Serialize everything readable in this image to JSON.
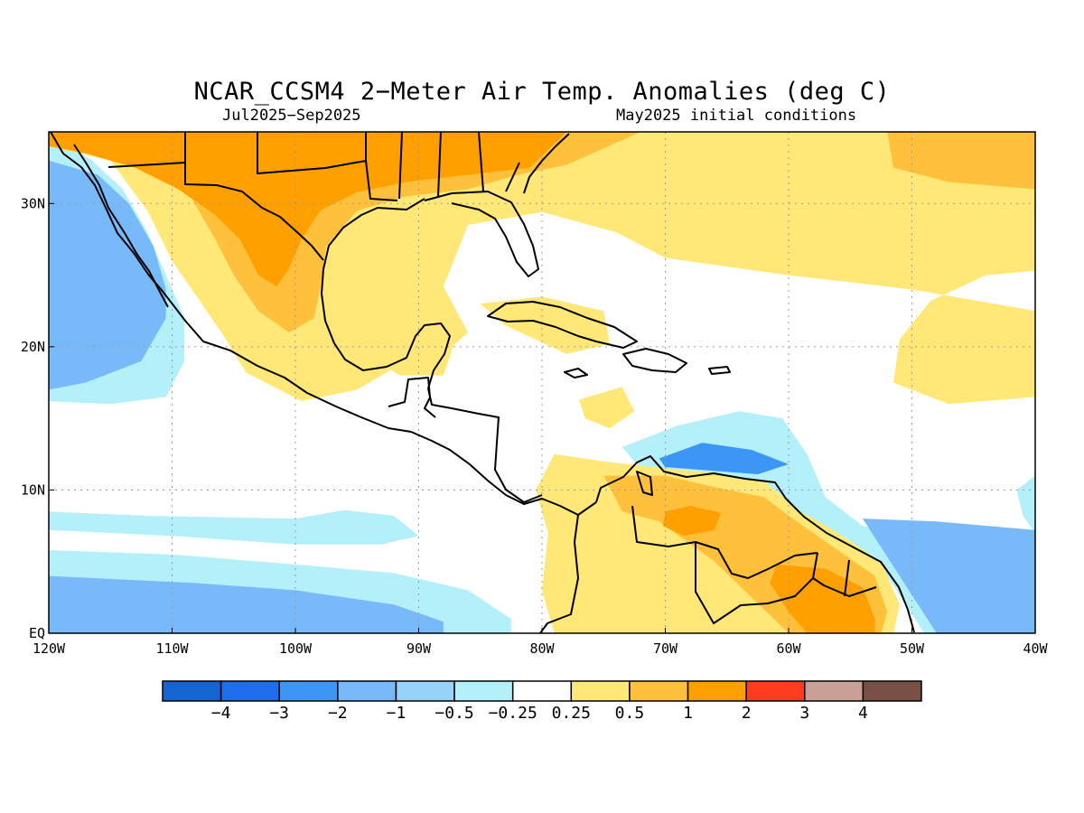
{
  "header": {
    "title": "NCAR_CCSM4 2−Meter Air Temp. Anomalies (deg C)",
    "period": "Jul2025−Sep2025",
    "init": "May2025 initial conditions"
  },
  "map_extent": {
    "lon_min": -120,
    "lon_max": -40,
    "lat_min": 0,
    "lat_max": 35
  },
  "axes": {
    "x_ticks": [
      {
        "lon": -120,
        "label": "120W"
      },
      {
        "lon": -110,
        "label": "110W"
      },
      {
        "lon": -100,
        "label": "100W"
      },
      {
        "lon": -90,
        "label": "90W"
      },
      {
        "lon": -80,
        "label": "80W"
      },
      {
        "lon": -70,
        "label": "70W"
      },
      {
        "lon": -60,
        "label": "60W"
      },
      {
        "lon": -50,
        "label": "50W"
      },
      {
        "lon": -40,
        "label": "40W"
      }
    ],
    "y_ticks": [
      {
        "lat": 0,
        "label": "EQ"
      },
      {
        "lat": 10,
        "label": "10N"
      },
      {
        "lat": 20,
        "label": "20N"
      },
      {
        "lat": 30,
        "label": "30N"
      }
    ]
  },
  "colorbar": {
    "colors": [
      "#1464d2",
      "#1e6eeb",
      "#3c96f5",
      "#78b9fa",
      "#96d2fa",
      "#b4f0fa",
      "#ffffff",
      "#ffe878",
      "#ffc03c",
      "#ffa000",
      "#ff3c1e",
      "#c8a096",
      "#785046"
    ],
    "labels": [
      "−4",
      "−3",
      "−2",
      "−1",
      "−0.5",
      "−0.25",
      "0.25",
      "0.5",
      "1",
      "2",
      "3",
      "4"
    ]
  },
  "regions": [
    {
      "level": 4,
      "name": "cold-neg1",
      "color": "#78b9fa",
      "points": [
        [
          -120,
          33
        ],
        [
          -116,
          32
        ],
        [
          -113.5,
          30
        ],
        [
          -111.5,
          27
        ],
        [
          -110.5,
          24
        ],
        [
          -110.5,
          22
        ],
        [
          -112.5,
          19
        ],
        [
          -117,
          17.5
        ],
        [
          -120,
          17
        ]
      ]
    },
    {
      "level": 4,
      "name": "cold-neg1-equatorial",
      "color": "#78b9fa",
      "points": [
        [
          -120,
          4
        ],
        [
          -108,
          3.5
        ],
        [
          -100,
          3
        ],
        [
          -92,
          2
        ],
        [
          -88,
          0.8
        ],
        [
          -88,
          0
        ],
        [
          -120,
          0
        ]
      ]
    },
    {
      "level": 5,
      "name": "cold-neg05-pacific",
      "color": "#b4f0fa",
      "points": [
        [
          -120,
          35
        ],
        [
          -116.5,
          33
        ],
        [
          -114,
          31
        ],
        [
          -112,
          28
        ],
        [
          -110.5,
          25
        ],
        [
          -109,
          22
        ],
        [
          -109,
          19
        ],
        [
          -110.5,
          16.5
        ],
        [
          -115,
          16
        ],
        [
          -120,
          16.2
        ]
      ]
    },
    {
      "level": 5,
      "name": "cold-neg05-band",
      "color": "#b4f0fa",
      "points": [
        [
          -120,
          8.5
        ],
        [
          -112,
          8.2
        ],
        [
          -100,
          8
        ],
        [
          -96,
          8.6
        ],
        [
          -92,
          8.2
        ],
        [
          -90,
          6.8
        ],
        [
          -93,
          6.2
        ],
        [
          -100,
          6.2
        ],
        [
          -110,
          6.8
        ],
        [
          -120,
          7.2
        ]
      ]
    },
    {
      "level": 5,
      "name": "cold-neg05-south",
      "color": "#b4f0fa",
      "points": [
        [
          -120,
          5.8
        ],
        [
          -110,
          5.5
        ],
        [
          -100,
          4.8
        ],
        [
          -92,
          4.2
        ],
        [
          -86,
          3
        ],
        [
          -82.5,
          1
        ],
        [
          -82.5,
          0
        ],
        [
          -120,
          0
        ]
      ]
    },
    {
      "level": 5,
      "name": "cold-neg05-caribbean",
      "color": "#b4f0fa",
      "points": [
        [
          -73.5,
          13
        ],
        [
          -69,
          14.5
        ],
        [
          -64,
          15.5
        ],
        [
          -60.5,
          15
        ],
        [
          -58.5,
          12.5
        ],
        [
          -57,
          9.5
        ],
        [
          -54,
          7.5
        ],
        [
          -48,
          6.5
        ],
        [
          -40,
          5.5
        ],
        [
          -40,
          0
        ],
        [
          -49,
          0
        ],
        [
          -52,
          4
        ],
        [
          -56,
          6.8
        ],
        [
          -60,
          8.8
        ],
        [
          -63,
          10.6
        ],
        [
          -67,
          11.2
        ],
        [
          -72,
          11.5
        ]
      ]
    },
    {
      "level": 5,
      "name": "cold-neg05-east",
      "color": "#b4f0fa",
      "points": [
        [
          -40,
          11
        ],
        [
          -41.5,
          10
        ],
        [
          -41,
          8.2
        ],
        [
          -40,
          7
        ]
      ]
    },
    {
      "level": 4,
      "name": "cold-neg1-east",
      "color": "#78b9fa",
      "points": [
        [
          -54,
          8
        ],
        [
          -48,
          7.8
        ],
        [
          -40,
          7.2
        ],
        [
          -40,
          0
        ],
        [
          -48,
          0
        ]
      ]
    },
    {
      "level": 3,
      "name": "cold-neg2-caribbean",
      "color": "#3c96f5",
      "points": [
        [
          -70.5,
          12.2
        ],
        [
          -67,
          13.3
        ],
        [
          -63,
          12.8
        ],
        [
          -60,
          11.8
        ],
        [
          -62.5,
          11.1
        ],
        [
          -67,
          11.4
        ],
        [
          -70,
          11.6
        ]
      ]
    },
    {
      "level": 7,
      "name": "warm-025-north",
      "color": "#ffe878",
      "points": [
        [
          -120,
          35
        ],
        [
          -40,
          35
        ],
        [
          -40,
          25.3
        ],
        [
          -44,
          25
        ],
        [
          -48.5,
          23.2
        ],
        [
          -51,
          20.5
        ],
        [
          -51.5,
          17.5
        ],
        [
          -47,
          16
        ],
        [
          -40,
          16.5
        ],
        [
          -40,
          22.5
        ],
        [
          -50,
          24
        ],
        [
          -60,
          25
        ],
        [
          -70,
          26.2
        ],
        [
          -74,
          28
        ],
        [
          -80,
          29.4
        ],
        [
          -86,
          28.5
        ],
        [
          -88,
          24.2
        ],
        [
          -86,
          21
        ],
        [
          -89,
          18.7
        ],
        [
          -92,
          18.5
        ],
        [
          -95,
          17
        ],
        [
          -99.5,
          16.2
        ],
        [
          -104,
          18.2
        ],
        [
          -106,
          21
        ],
        [
          -108,
          23.5
        ],
        [
          -110,
          26
        ],
        [
          -112,
          29.5
        ],
        [
          -115,
          33
        ],
        [
          -120,
          34
        ]
      ]
    },
    {
      "level": 7,
      "name": "warm-025-yucatan",
      "color": "#ffe878",
      "points": [
        [
          -95,
          22
        ],
        [
          -90,
          21.5
        ],
        [
          -87,
          20.5
        ],
        [
          -88,
          18
        ],
        [
          -91.5,
          18
        ],
        [
          -94.5,
          19.5
        ]
      ]
    },
    {
      "level": 7,
      "name": "warm-025-cuba",
      "color": "#ffe878",
      "points": [
        [
          -85,
          23
        ],
        [
          -80,
          23.5
        ],
        [
          -75,
          22.5
        ],
        [
          -74.5,
          20.2
        ],
        [
          -78,
          19.5
        ],
        [
          -83,
          21.5
        ]
      ]
    },
    {
      "level": 7,
      "name": "warm-025-central-caribbean",
      "color": "#ffe878",
      "points": [
        [
          -77,
          16.3
        ],
        [
          -73.5,
          17.2
        ],
        [
          -72.5,
          15.5
        ],
        [
          -74.5,
          14.3
        ],
        [
          -76.5,
          15
        ]
      ]
    },
    {
      "level": 7,
      "name": "warm-025-southamerica",
      "color": "#ffe878",
      "points": [
        [
          -79,
          12.5
        ],
        [
          -75,
          12
        ],
        [
          -70,
          11.5
        ],
        [
          -66,
          11.2
        ],
        [
          -62,
          10.6
        ],
        [
          -59,
          8.5
        ],
        [
          -56,
          7
        ],
        [
          -52.5,
          5
        ],
        [
          -51,
          2
        ],
        [
          -51.5,
          0
        ],
        [
          -79,
          0
        ],
        [
          -80,
          3
        ],
        [
          -79.5,
          7
        ],
        [
          -80.5,
          10
        ]
      ]
    },
    {
      "level": 8,
      "name": "warm-05-north",
      "color": "#ffc03c",
      "points": [
        [
          -120,
          35
        ],
        [
          -72,
          35
        ],
        [
          -78,
          32.7
        ],
        [
          -82,
          32
        ],
        [
          -86,
          31
        ],
        [
          -91,
          30.5
        ],
        [
          -95,
          29.5
        ],
        [
          -97.5,
          27
        ],
        [
          -98,
          24
        ],
        [
          -98.5,
          22
        ],
        [
          -100.5,
          21
        ],
        [
          -103,
          22.5
        ],
        [
          -105,
          25
        ],
        [
          -106.5,
          27.5
        ],
        [
          -108.5,
          30.5
        ],
        [
          -111.5,
          32
        ],
        [
          -114,
          33
        ],
        [
          -117,
          34
        ],
        [
          -120,
          34.5
        ]
      ]
    },
    {
      "level": 8,
      "name": "warm-05-east",
      "color": "#ffc03c",
      "points": [
        [
          -52,
          35
        ],
        [
          -40,
          35
        ],
        [
          -40,
          31
        ],
        [
          -47,
          31.5
        ],
        [
          -51.5,
          32.5
        ]
      ]
    },
    {
      "level": 8,
      "name": "warm-05-southamerica",
      "color": "#ffc03c",
      "points": [
        [
          -75,
          11
        ],
        [
          -70,
          11
        ],
        [
          -66,
          10.2
        ],
        [
          -62,
          9.5
        ],
        [
          -59,
          7.6
        ],
        [
          -56,
          5.8
        ],
        [
          -53,
          4
        ],
        [
          -52,
          1.5
        ],
        [
          -52.5,
          0
        ],
        [
          -60,
          0
        ],
        [
          -63,
          2.5
        ],
        [
          -66,
          5
        ],
        [
          -70.5,
          7.8
        ],
        [
          -73.5,
          8.5
        ]
      ]
    },
    {
      "level": 9,
      "name": "warm-1-north",
      "color": "#ffa000",
      "points": [
        [
          -120,
          35
        ],
        [
          -78,
          35
        ],
        [
          -81,
          32.5
        ],
        [
          -86,
          32
        ],
        [
          -91,
          31.5
        ],
        [
          -95,
          30.8
        ],
        [
          -98,
          29.5
        ],
        [
          -99.5,
          27.5
        ],
        [
          -100.5,
          25.5
        ],
        [
          -101.5,
          24.2
        ],
        [
          -103,
          25
        ],
        [
          -104.5,
          27.5
        ],
        [
          -106.5,
          29.2
        ],
        [
          -109.5,
          31
        ],
        [
          -113,
          32.5
        ],
        [
          -117,
          33.5
        ],
        [
          -120,
          34
        ]
      ]
    },
    {
      "level": 9,
      "name": "warm-1-venezuela",
      "color": "#ffa000",
      "points": [
        [
          -70,
          8.5
        ],
        [
          -68,
          8.9
        ],
        [
          -65.5,
          8.4
        ],
        [
          -66,
          7.2
        ],
        [
          -68.5,
          6.8
        ],
        [
          -70.2,
          7.5
        ]
      ]
    },
    {
      "level": 9,
      "name": "warm-1-guyana",
      "color": "#ffa000",
      "points": [
        [
          -61,
          4.8
        ],
        [
          -57,
          4.5
        ],
        [
          -54,
          3.2
        ],
        [
          -53,
          1
        ],
        [
          -53,
          0
        ],
        [
          -58.5,
          0
        ],
        [
          -60,
          1.5
        ],
        [
          -61.5,
          3.5
        ]
      ]
    }
  ]
}
